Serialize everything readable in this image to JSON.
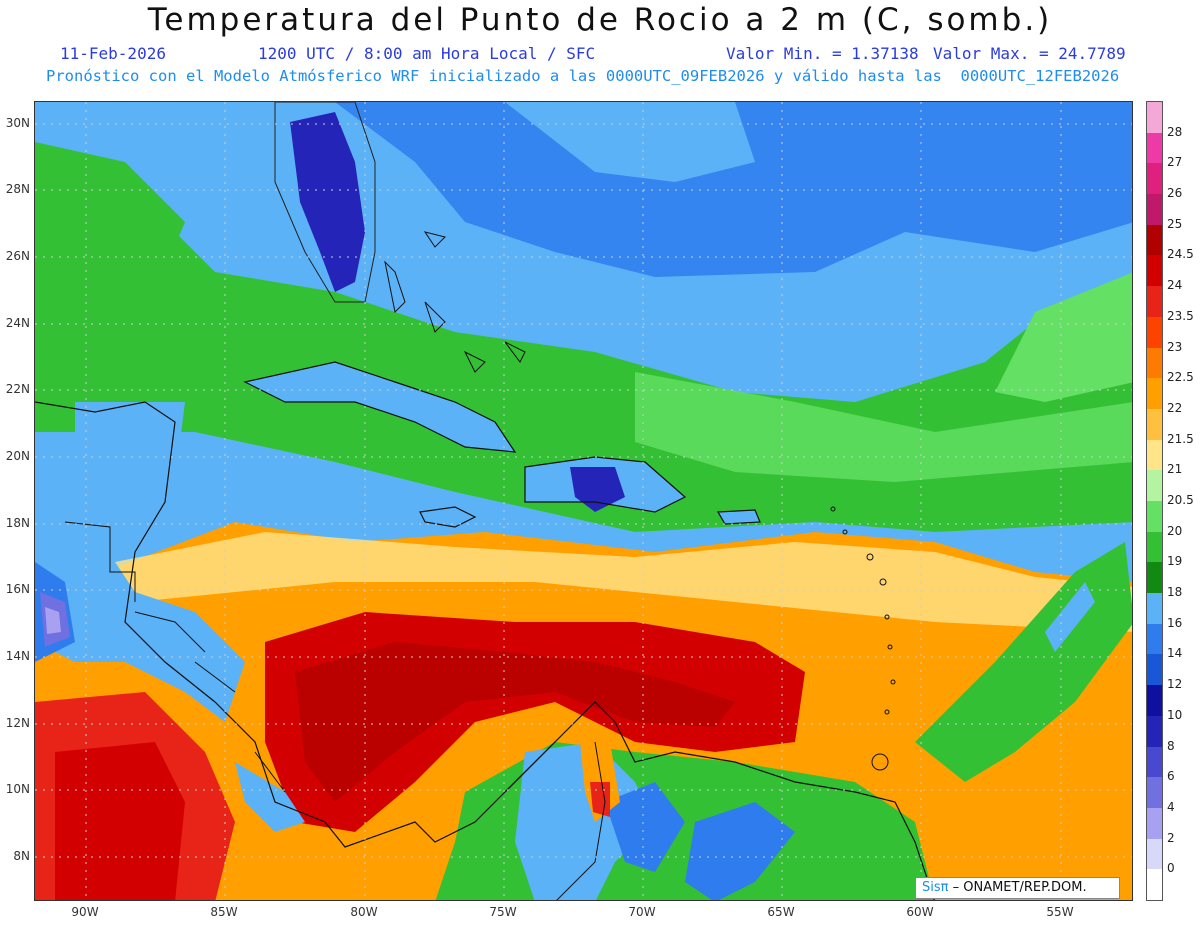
{
  "header": {
    "title": "Temperatura del Punto de Rocio a 2 m (C, somb.)",
    "date": "11-Feb-2026",
    "time": "1200 UTC / 8:00 am Hora Local / SFC",
    "min": "Valor Min. = 1.37138",
    "max": "Valor Max. = 24.7789",
    "model_note": "Pronóstico con el Modelo Atmósferico WRF inicializado a las 0000UTC_09FEB2026 y válido hasta las  0000UTC_12FEB2026"
  },
  "axes": {
    "lat_labels": [
      "30N",
      "28N",
      "26N",
      "24N",
      "22N",
      "20N",
      "18N",
      "16N",
      "14N",
      "12N",
      "10N",
      "8N"
    ],
    "lon_labels": [
      "90W",
      "85W",
      "80W",
      "75W",
      "70W",
      "65W",
      "60W",
      "55W"
    ]
  },
  "colorbar": {
    "labels": [
      "28",
      "27",
      "26",
      "25",
      "24.5",
      "24",
      "23.5",
      "23",
      "22.5",
      "22",
      "21.5",
      "21",
      "20.5",
      "20",
      "19",
      "18",
      "16",
      "14",
      "12",
      "10",
      "8",
      "6",
      "4",
      "2",
      "0"
    ],
    "colors": [
      "#f4a8d8",
      "#ee3aa6",
      "#e0207e",
      "#c0186a",
      "#b00000",
      "#d20000",
      "#e82418",
      "#fc4400",
      "#ff7a00",
      "#ffa000",
      "#ffc040",
      "#ffe48a",
      "#b4f4a0",
      "#64e064",
      "#34c034",
      "#128a12",
      "#5cb2f6",
      "#2e7cee",
      "#1858d8",
      "#1010a0",
      "#2424b8",
      "#4848d0",
      "#7070e0",
      "#a8a0f0",
      "#d8d8f8",
      "#ffffff"
    ]
  },
  "credit": {
    "logo": "Sisπ",
    "text": " –  ONAMET/REP.DOM."
  },
  "icons": [
    "coastline-outline",
    "graticule-grid"
  ]
}
